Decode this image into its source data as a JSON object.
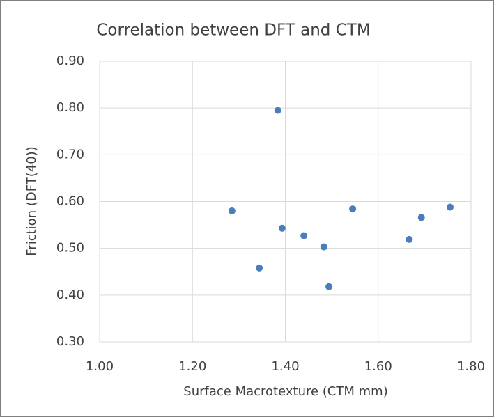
{
  "chart_data": {
    "type": "scatter",
    "title": "Correlation between DFT and CTM",
    "x_label": "Surface Macrotexture (CTM mm)",
    "y_label": "Friction (DFT(40))",
    "color": "#4a7ebb",
    "x": [
      1.285,
      1.344,
      1.384,
      1.393,
      1.44,
      1.483,
      1.494,
      1.545,
      1.693,
      1.667,
      1.755
    ],
    "values": [
      0.58,
      0.458,
      0.795,
      0.543,
      0.527,
      0.503,
      0.418,
      0.584,
      0.566,
      0.519,
      0.588
    ],
    "xlim": [
      1.0,
      1.8
    ],
    "xticks": [
      {
        "value": 1.0,
        "label": "1.00"
      },
      {
        "value": 1.2,
        "label": "1.20"
      },
      {
        "value": 1.4,
        "label": "1.40"
      },
      {
        "value": 1.6,
        "label": "1.60"
      },
      {
        "value": 1.8,
        "label": "1.80"
      }
    ],
    "ylim": [
      0.3,
      0.9
    ],
    "yticks": [
      {
        "value": 0.3,
        "label": "0.30"
      },
      {
        "value": 0.4,
        "label": "0.40"
      },
      {
        "value": 0.5,
        "label": "0.50"
      },
      {
        "value": 0.6,
        "label": "0.60"
      },
      {
        "value": 0.7,
        "label": "0.70"
      },
      {
        "value": 0.8,
        "label": "0.80"
      },
      {
        "value": 0.9,
        "label": "0.90"
      }
    ],
    "grid": true
  }
}
